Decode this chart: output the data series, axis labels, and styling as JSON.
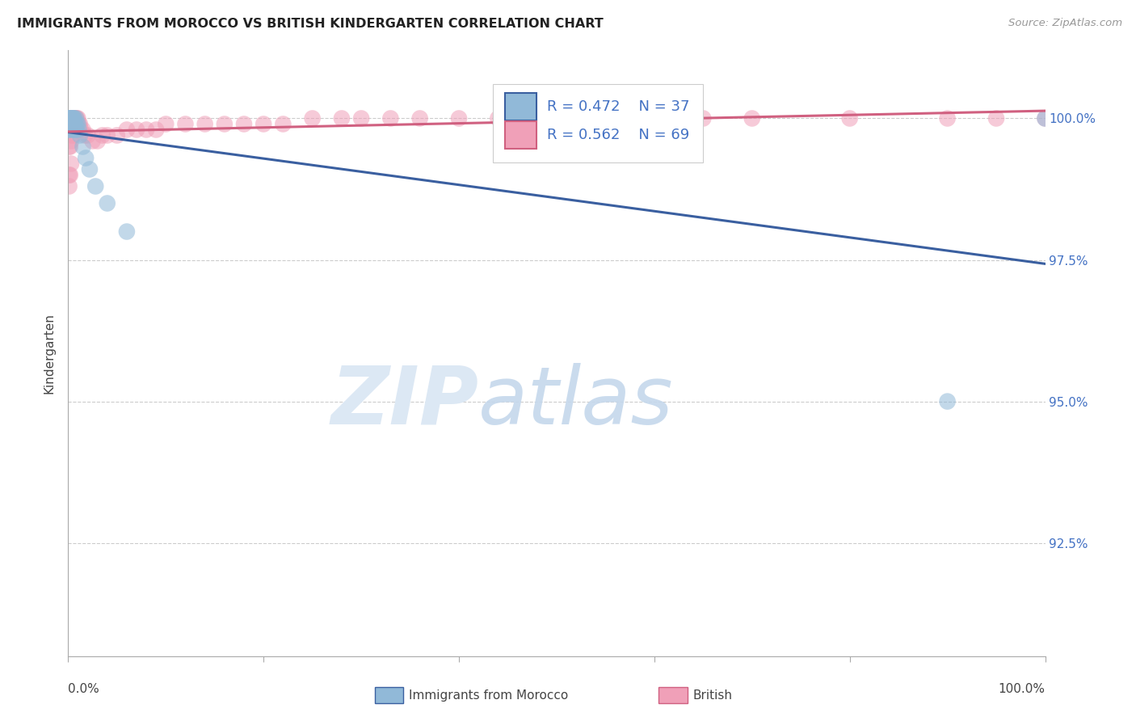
{
  "title": "IMMIGRANTS FROM MOROCCO VS BRITISH KINDERGARTEN CORRELATION CHART",
  "source": "Source: ZipAtlas.com",
  "ylabel": "Kindergarten",
  "ytick_labels": [
    "100.0%",
    "97.5%",
    "95.0%",
    "92.5%"
  ],
  "ytick_values": [
    1.0,
    0.975,
    0.95,
    0.925
  ],
  "xlim": [
    0.0,
    1.0
  ],
  "ylim": [
    0.905,
    1.012
  ],
  "morocco_color": "#91b9d8",
  "british_color": "#f0a0b8",
  "trendline_morocco_color": "#3a5fa0",
  "trendline_british_color": "#d06080",
  "grid_color": "#cccccc",
  "background_color": "#ffffff",
  "legend_R_color": "#4472c4",
  "legend_N_color": "#4472c4",
  "morocco_R": "0.472",
  "morocco_N": "37",
  "british_R": "0.562",
  "british_N": "69",
  "morocco_x": [
    0.001,
    0.001,
    0.001,
    0.001,
    0.001,
    0.002,
    0.002,
    0.002,
    0.002,
    0.003,
    0.003,
    0.003,
    0.003,
    0.004,
    0.004,
    0.005,
    0.005,
    0.005,
    0.006,
    0.006,
    0.006,
    0.007,
    0.007,
    0.008,
    0.008,
    0.009,
    0.01,
    0.011,
    0.012,
    0.015,
    0.018,
    0.022,
    0.028,
    0.04,
    0.06,
    0.9,
    1.0
  ],
  "morocco_y": [
    0.998,
    0.999,
    1.0,
    1.0,
    1.0,
    0.998,
    0.999,
    1.0,
    1.0,
    0.999,
    1.0,
    1.0,
    1.0,
    0.999,
    1.0,
    0.998,
    0.999,
    1.0,
    0.999,
    1.0,
    1.0,
    0.998,
    0.999,
    0.998,
    1.0,
    0.999,
    0.999,
    0.998,
    0.997,
    0.995,
    0.993,
    0.991,
    0.988,
    0.985,
    0.98,
    0.95,
    1.0
  ],
  "british_x": [
    0.001,
    0.001,
    0.001,
    0.002,
    0.002,
    0.002,
    0.002,
    0.003,
    0.003,
    0.003,
    0.003,
    0.003,
    0.004,
    0.004,
    0.004,
    0.005,
    0.005,
    0.005,
    0.006,
    0.006,
    0.006,
    0.007,
    0.007,
    0.007,
    0.008,
    0.008,
    0.009,
    0.009,
    0.01,
    0.01,
    0.011,
    0.012,
    0.013,
    0.015,
    0.017,
    0.02,
    0.025,
    0.03,
    0.035,
    0.04,
    0.05,
    0.06,
    0.07,
    0.08,
    0.09,
    0.1,
    0.12,
    0.14,
    0.16,
    0.18,
    0.2,
    0.22,
    0.25,
    0.28,
    0.3,
    0.33,
    0.36,
    0.4,
    0.44,
    0.48,
    0.52,
    0.56,
    0.6,
    0.65,
    0.7,
    0.8,
    0.9,
    0.95,
    1.0
  ],
  "british_y": [
    0.988,
    0.99,
    0.995,
    0.99,
    0.995,
    0.998,
    1.0,
    0.992,
    0.996,
    0.999,
    1.0,
    1.0,
    0.997,
    0.999,
    1.0,
    0.997,
    0.999,
    1.0,
    0.998,
    0.999,
    1.0,
    0.998,
    0.999,
    1.0,
    0.998,
    1.0,
    0.999,
    1.0,
    0.998,
    1.0,
    0.999,
    0.999,
    0.998,
    0.998,
    0.997,
    0.997,
    0.996,
    0.996,
    0.997,
    0.997,
    0.997,
    0.998,
    0.998,
    0.998,
    0.998,
    0.999,
    0.999,
    0.999,
    0.999,
    0.999,
    0.999,
    0.999,
    1.0,
    1.0,
    1.0,
    1.0,
    1.0,
    1.0,
    1.0,
    1.0,
    1.0,
    1.0,
    1.0,
    1.0,
    1.0,
    1.0,
    1.0,
    1.0,
    1.0
  ]
}
